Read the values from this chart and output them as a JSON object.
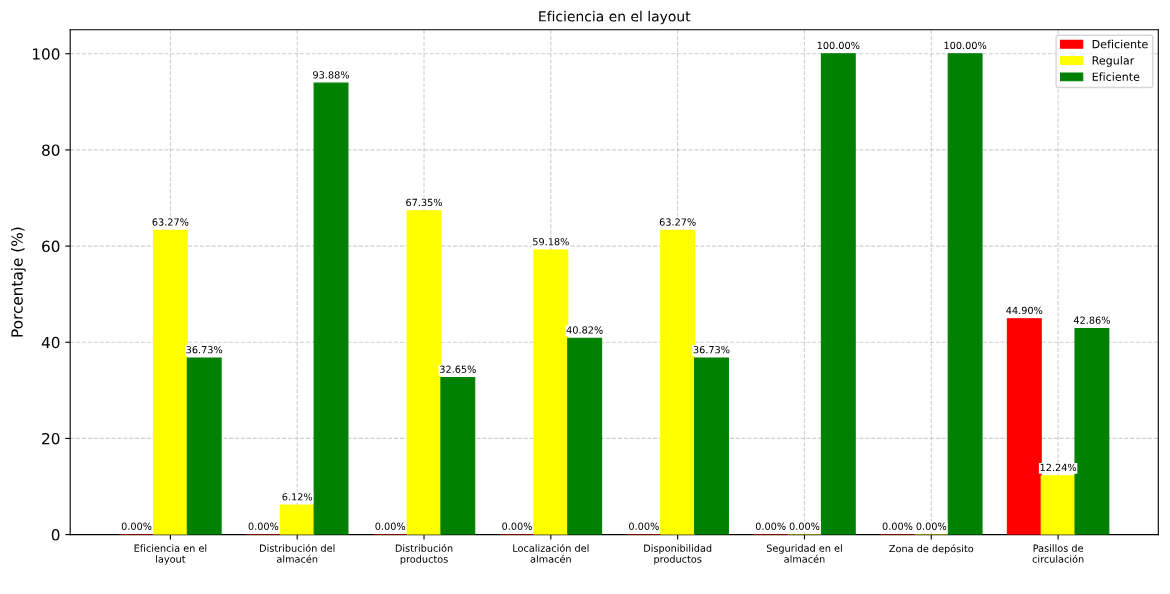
{
  "chart_data": {
    "type": "bar",
    "title": "Eficiencia en el layout",
    "ylabel": "Porcentaje (%)",
    "categories": [
      "Eficiencia en el\nlayout",
      "Distribución del\nalmacén",
      "Distribución\nproductos",
      "Localización del\nalmacén",
      "Disponibilidad\nproductos",
      "Seguridad en el\nalmacén",
      "Zona de depósito",
      "Pasillos de\ncirculación"
    ],
    "series": [
      {
        "name": "Deficiente",
        "color": "#ff0000",
        "values": [
          0,
          0,
          0,
          0,
          0,
          0,
          0,
          44.9
        ],
        "value_labels": [
          "0.00%",
          "0.00%",
          "0.00%",
          "0.00%",
          "0.00%",
          "0.00%",
          "0.00%",
          "44.90%"
        ]
      },
      {
        "name": "Regular",
        "color": "#ffff00",
        "values": [
          63.27,
          6.12,
          67.35,
          59.18,
          63.27,
          0,
          0,
          12.24
        ],
        "value_labels": [
          "63.27%",
          "6.12%",
          "67.35%",
          "59.18%",
          "63.27%",
          "0.00%",
          "0.00%",
          "12.24%"
        ]
      },
      {
        "name": "Eficiente",
        "color": "#008000",
        "values": [
          36.73,
          93.88,
          32.65,
          40.82,
          36.73,
          100,
          100,
          42.86
        ],
        "value_labels": [
          "36.73%",
          "93.88%",
          "32.65%",
          "40.82%",
          "36.73%",
          "100.00%",
          "100.00%",
          "42.86%"
        ]
      }
    ],
    "ylim": [
      0,
      105
    ],
    "yticks": [
      0,
      20,
      40,
      60,
      80,
      100
    ],
    "grid": true,
    "legend": "top right"
  }
}
